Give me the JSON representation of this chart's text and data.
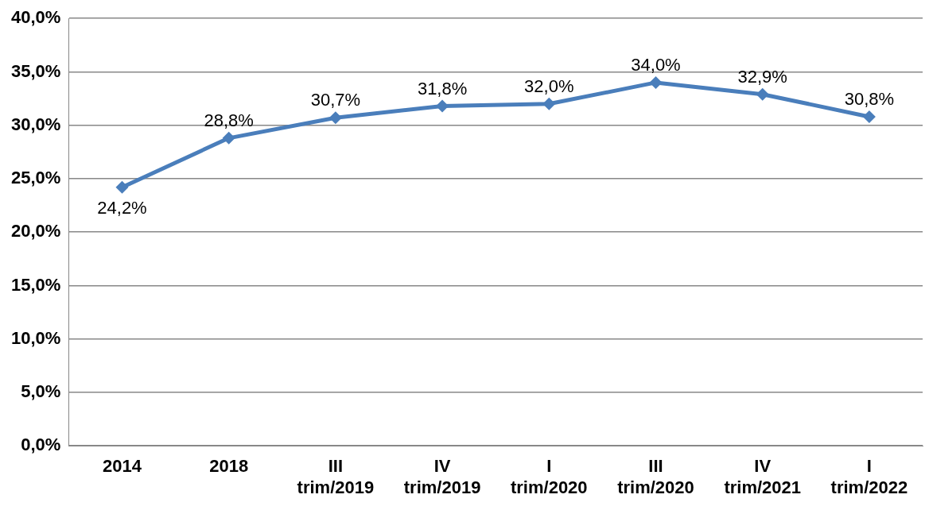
{
  "chart_data": {
    "type": "line",
    "categories": [
      "2014",
      "2018",
      "III\ntrim/2019",
      "IV\ntrim/2019",
      "I\ntrim/2020",
      "III\ntrim/2020",
      "IV\ntrim/2021",
      "I\ntrim/2022"
    ],
    "series": [
      {
        "color": "#4a7ebb",
        "values": [
          24.2,
          28.8,
          30.7,
          31.8,
          32.0,
          34.0,
          32.9,
          30.8
        ],
        "value_labels": [
          "24,2%",
          "28,8%",
          "30,7%",
          "31,8%",
          "32,0%",
          "34,0%",
          "32,9%",
          "30,8%"
        ]
      }
    ],
    "ylim": [
      0,
      40
    ],
    "yticks": [
      {
        "value": 0,
        "label": "0,0%"
      },
      {
        "value": 5,
        "label": "5,0%"
      },
      {
        "value": 10,
        "label": "10,0%"
      },
      {
        "value": 15,
        "label": "15,0%"
      },
      {
        "value": 20,
        "label": "20,0%"
      },
      {
        "value": 25,
        "label": "25,0%"
      },
      {
        "value": 30,
        "label": "30,0%"
      },
      {
        "value": 35,
        "label": "35,0%"
      },
      {
        "value": 40,
        "label": "40,0%"
      }
    ],
    "grid": "y",
    "legend": false,
    "marker": "diamond",
    "line_style": "solid"
  }
}
